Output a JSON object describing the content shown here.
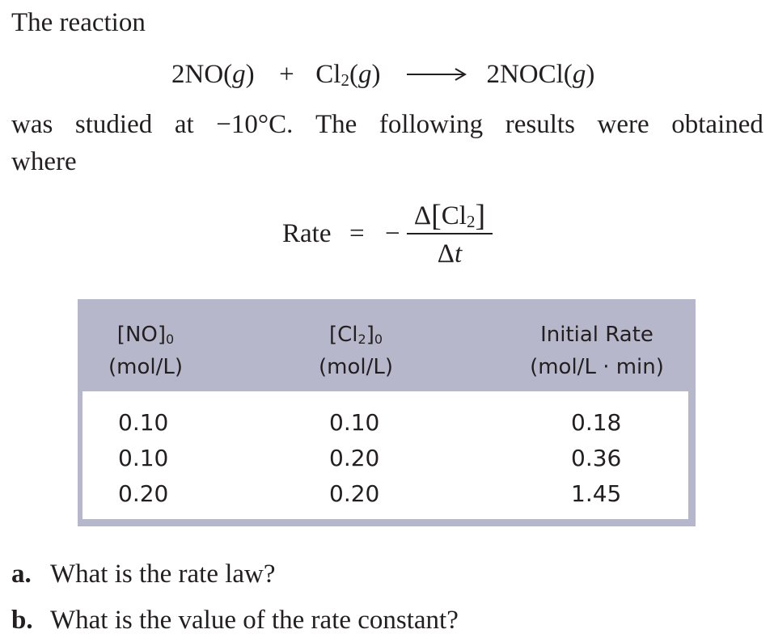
{
  "intro": "The reaction",
  "equation": {
    "reactant1": "2NO(",
    "reactant1_state": "g",
    "reactant1_close": ")",
    "plus": "+",
    "reactant2": "Cl",
    "reactant2_sub": "2",
    "reactant2_state_open": "(",
    "reactant2_state": "g",
    "reactant2_state_close": ")",
    "arrow": "⟶",
    "product": "2NOCl(",
    "product_state": "g",
    "product_close": ")"
  },
  "paragraph": {
    "line1_words": [
      "was",
      "studied",
      "at",
      "−10°C.",
      "The",
      "following",
      "results",
      "were",
      "obtained"
    ],
    "line2": "where"
  },
  "rate_equation": {
    "lhs": "Rate",
    "equals": "=",
    "minus": "−",
    "numerator_delta": "Δ",
    "numerator_species": "Cl",
    "numerator_sub": "2",
    "denominator_delta": "Δ",
    "denominator_var": "t"
  },
  "table": {
    "headers": [
      {
        "line1": "[NO]",
        "sub": "0",
        "line2": "(mol/L)"
      },
      {
        "line1": "[Cl",
        "mid_sub": "2",
        "line1_end": "]",
        "sub": "0",
        "line2": "(mol/L)"
      },
      {
        "line1": "Initial Rate",
        "line2": "(mol/L · min)"
      }
    ],
    "rows": [
      [
        "0.10",
        "0.10",
        "0.18"
      ],
      [
        "0.10",
        "0.20",
        "0.36"
      ],
      [
        "0.20",
        "0.20",
        "1.45"
      ]
    ]
  },
  "questions": [
    {
      "label": "a.",
      "text": "What is the rate law?"
    },
    {
      "label": "b.",
      "text": "What is the value of the rate constant?"
    }
  ]
}
